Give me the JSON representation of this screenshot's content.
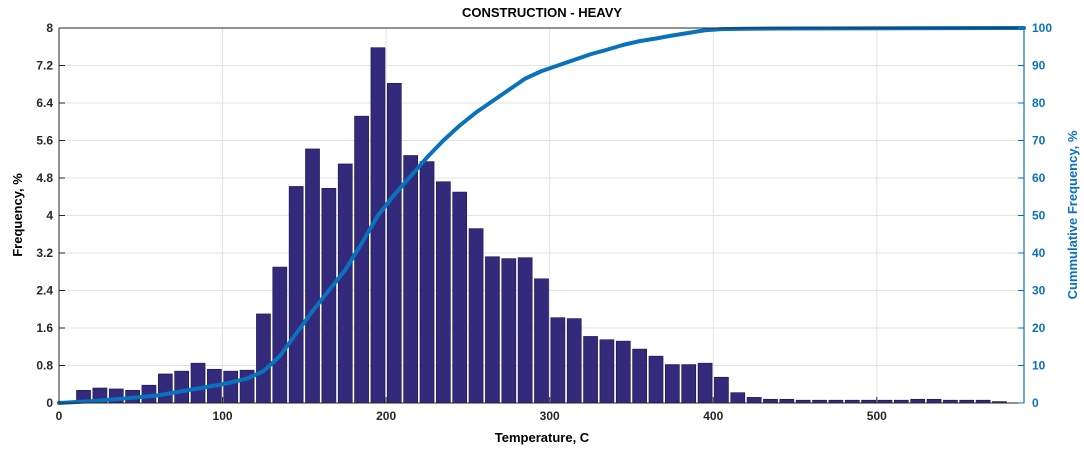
{
  "chart_data": {
    "type": "bar",
    "title": "CONSTRUCTION - HEAVY",
    "xlabel": "Temperature, C",
    "ylabel": "Frequency, %",
    "y2label": "Cummulative Frequency, %",
    "xlim": [
      0,
      590
    ],
    "ylim": [
      0,
      8
    ],
    "y2lim": [
      0,
      100
    ],
    "xticks": [
      0,
      100,
      200,
      300,
      400,
      500
    ],
    "yticks": [
      "0",
      "0.8",
      "1.6",
      "2.4",
      "3.2",
      "4",
      "4.8",
      "5.6",
      "6.4",
      "7.2",
      "8"
    ],
    "y2ticks": [
      0,
      10,
      20,
      30,
      40,
      50,
      60,
      70,
      80,
      90,
      100
    ],
    "grid": true,
    "series": [
      {
        "type": "bar",
        "axis": "left",
        "color": "#332a7c",
        "bin_width": 10,
        "x": [
          15,
          25,
          35,
          45,
          55,
          65,
          75,
          85,
          95,
          105,
          115,
          125,
          135,
          145,
          155,
          165,
          175,
          185,
          195,
          205,
          215,
          225,
          235,
          245,
          255,
          265,
          275,
          285,
          295,
          305,
          315,
          325,
          335,
          345,
          355,
          365,
          375,
          385,
          395,
          405,
          415,
          425,
          435,
          445,
          455,
          465,
          475,
          485,
          495,
          505,
          515,
          525,
          535,
          545,
          555,
          565,
          575
        ],
        "values": [
          0.27,
          0.32,
          0.3,
          0.27,
          0.38,
          0.62,
          0.68,
          0.85,
          0.72,
          0.68,
          0.7,
          1.9,
          2.9,
          4.62,
          5.42,
          4.58,
          5.1,
          6.12,
          7.58,
          6.82,
          5.28,
          5.15,
          4.72,
          4.5,
          3.72,
          3.12,
          3.08,
          3.1,
          2.65,
          1.82,
          1.8,
          1.42,
          1.35,
          1.32,
          1.15,
          1.0,
          0.82,
          0.82,
          0.85,
          0.55,
          0.22,
          0.12,
          0.08,
          0.08,
          0.06,
          0.06,
          0.06,
          0.06,
          0.06,
          0.06,
          0.06,
          0.08,
          0.08,
          0.06,
          0.06,
          0.06,
          0.03
        ]
      },
      {
        "type": "line",
        "axis": "right",
        "color": "#0a72bd",
        "x": [
          0,
          20,
          40,
          60,
          80,
          100,
          115,
          125,
          135,
          145,
          155,
          165,
          175,
          185,
          195,
          205,
          215,
          225,
          235,
          245,
          255,
          265,
          275,
          285,
          295,
          305,
          315,
          325,
          335,
          345,
          355,
          365,
          375,
          385,
          395,
          405,
          420,
          440,
          480,
          540,
          590
        ],
        "values": [
          0,
          0.5,
          1.2,
          2.0,
          3.5,
          5.0,
          6.5,
          8.5,
          12.5,
          18.5,
          24.5,
          30.0,
          35.5,
          42.5,
          50.0,
          55.5,
          60.5,
          65.5,
          70.0,
          74.0,
          77.5,
          80.5,
          83.5,
          86.5,
          88.5,
          90.0,
          91.5,
          93.0,
          94.2,
          95.5,
          96.5,
          97.2,
          98.0,
          98.7,
          99.4,
          99.7,
          99.8,
          99.85,
          99.9,
          99.97,
          100
        ]
      }
    ]
  }
}
